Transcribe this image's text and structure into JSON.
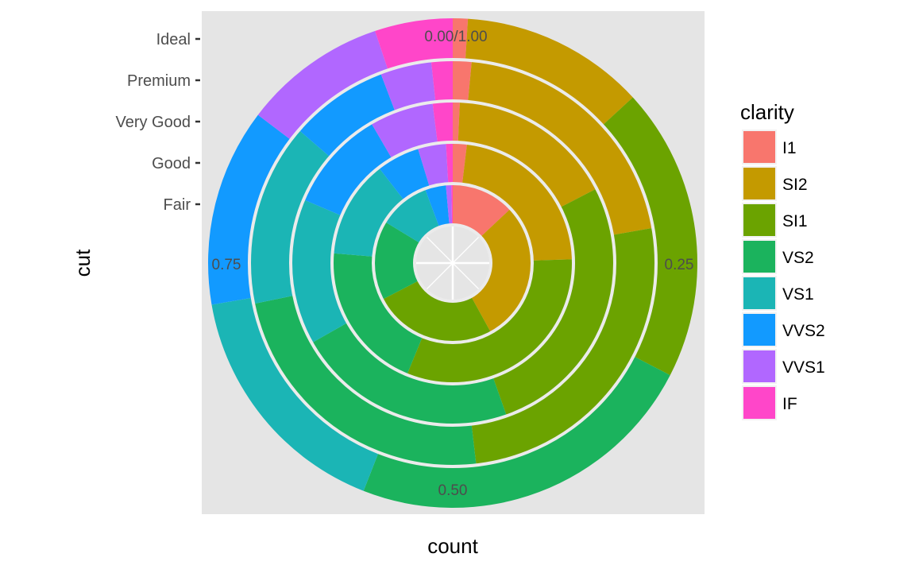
{
  "chart_data": {
    "type": "pie",
    "coord": "polar",
    "xlabel": "count",
    "ylabel": "cut",
    "categories": [
      "Fair",
      "Good",
      "Very Good",
      "Premium",
      "Ideal"
    ],
    "angle_ticks": [
      {
        "value": 0.0,
        "label": "0.00/1.00"
      },
      {
        "value": 0.25,
        "label": "0.25"
      },
      {
        "value": 0.5,
        "label": "0.50"
      },
      {
        "value": 0.75,
        "label": "0.75"
      }
    ],
    "legend": {
      "title": "clarity",
      "position": "right"
    },
    "series": [
      {
        "name": "I1",
        "color": "#F8766D",
        "values": [
          0.13,
          0.019,
          0.007,
          0.015,
          0.01
        ]
      },
      {
        "name": "SI2",
        "color": "#C49A00",
        "values": [
          0.29,
          0.226,
          0.167,
          0.208,
          0.123
        ]
      },
      {
        "name": "SI1",
        "color": "#6BA300",
        "values": [
          0.254,
          0.317,
          0.272,
          0.26,
          0.196
        ]
      },
      {
        "name": "VS2",
        "color": "#1BB35D",
        "values": [
          0.163,
          0.201,
          0.222,
          0.237,
          0.236
        ]
      },
      {
        "name": "VS1",
        "color": "#1BB5B5",
        "values": [
          0.106,
          0.132,
          0.146,
          0.146,
          0.165
        ]
      },
      {
        "name": "VVS2",
        "color": "#129AFF",
        "values": [
          0.043,
          0.058,
          0.102,
          0.079,
          0.132
        ]
      },
      {
        "name": "VVS1",
        "color": "#B167FF",
        "values": [
          0.011,
          0.038,
          0.064,
          0.041,
          0.096
        ]
      },
      {
        "name": "IF",
        "color": "#FF46C9",
        "values": [
          0.003,
          0.009,
          0.02,
          0.017,
          0.052
        ]
      }
    ],
    "background": "#E5E5E5",
    "grid_color": "#FFFFFF",
    "grid": true
  }
}
